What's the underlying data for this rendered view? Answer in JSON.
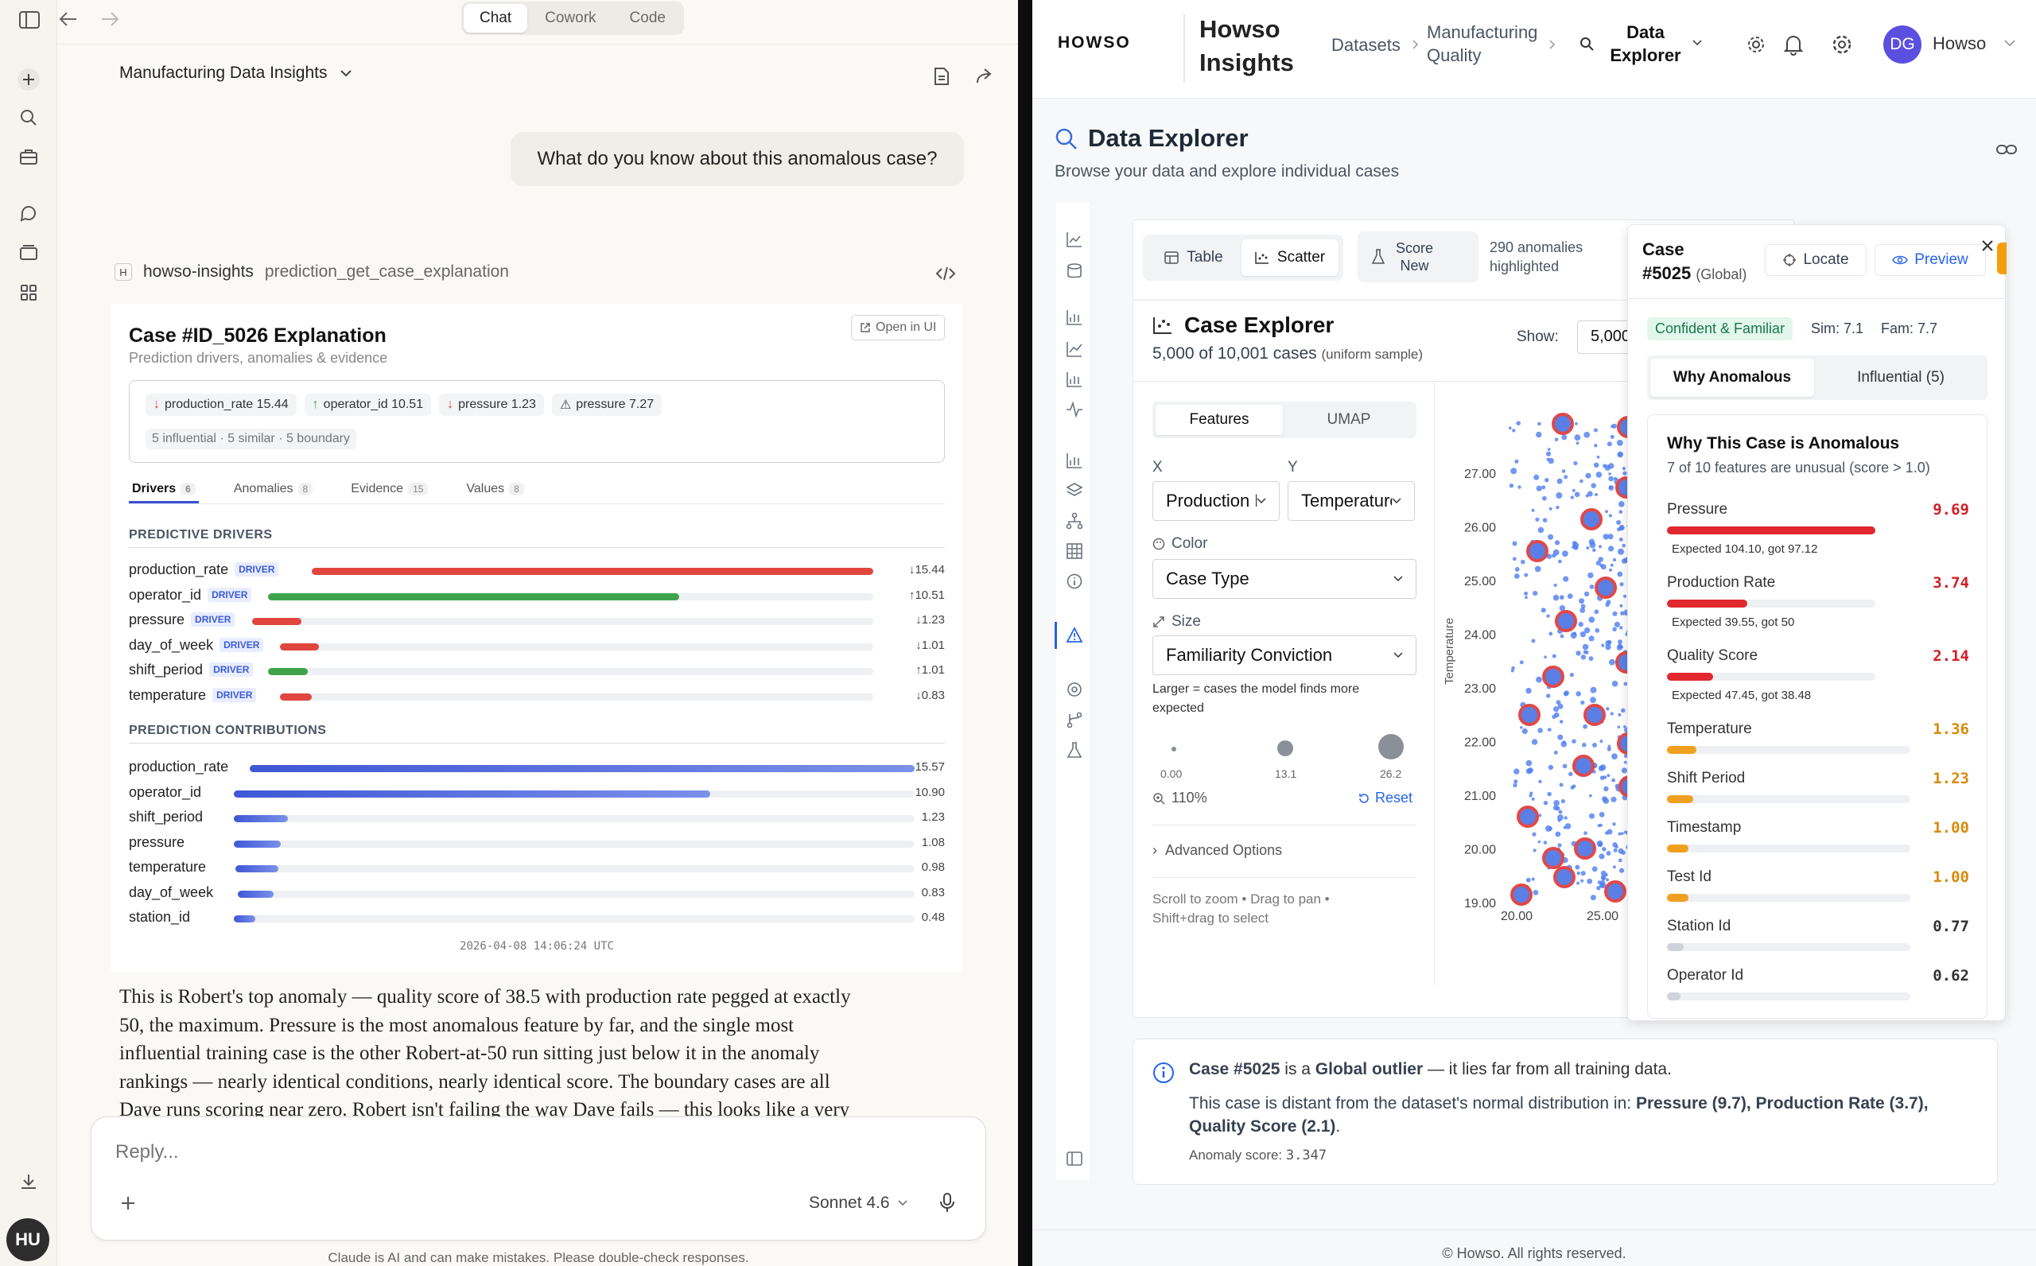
{
  "left": {
    "tabs": [
      "Chat",
      "Cowork",
      "Code"
    ],
    "active_tab": "Chat",
    "conversation_title": "Manufacturing Data Insights",
    "user_message": "What do you know about this anomalous case?",
    "tool": {
      "badge": "H",
      "server": "howso-insights",
      "name": "prediction_get_case_explanation"
    },
    "card": {
      "title": "Case #ID_5026 Explanation",
      "subtitle": "Prediction drivers, anomalies & evidence",
      "open_label": "Open in UI",
      "chips": [
        {
          "dir": "down",
          "text": "production_rate 15.44"
        },
        {
          "dir": "up",
          "text": "operator_id 10.51"
        },
        {
          "dir": "down",
          "text": "pressure 1.23"
        },
        {
          "dir": "warn",
          "text": "pressure 7.27"
        }
      ],
      "summary": "5 influential · 5 similar · 5 boundary",
      "tabs": [
        {
          "label": "Drivers",
          "count": "6"
        },
        {
          "label": "Anomalies",
          "count": "8"
        },
        {
          "label": "Evidence",
          "count": "15"
        },
        {
          "label": "Values",
          "count": "8"
        }
      ],
      "drivers_heading": "PREDICTIVE DRIVERS",
      "driver_tag": "DRIVER",
      "drivers": [
        {
          "name": "production_rate",
          "value": "↓15.44",
          "fraction": 1.0,
          "color": "#e0463e"
        },
        {
          "name": "operator_id",
          "value": "↑10.51",
          "fraction": 0.68,
          "color": "#3fa34d"
        },
        {
          "name": "pressure",
          "value": "↓1.23",
          "fraction": 0.08,
          "color": "#e0463e"
        },
        {
          "name": "day_of_week",
          "value": "↓1.01",
          "fraction": 0.066,
          "color": "#e0463e"
        },
        {
          "name": "shift_period",
          "value": "↑1.01",
          "fraction": 0.066,
          "color": "#3fa34d"
        },
        {
          "name": "temperature",
          "value": "↓0.83",
          "fraction": 0.054,
          "color": "#e0463e"
        }
      ],
      "contrib_heading": "PREDICTION CONTRIBUTIONS",
      "contributions": [
        {
          "name": "production_rate",
          "value": "15.57",
          "fraction": 1.0
        },
        {
          "name": "operator_id",
          "value": "10.90",
          "fraction": 0.7
        },
        {
          "name": "shift_period",
          "value": "1.23",
          "fraction": 0.079
        },
        {
          "name": "pressure",
          "value": "1.08",
          "fraction": 0.069
        },
        {
          "name": "temperature",
          "value": "0.98",
          "fraction": 0.063
        },
        {
          "name": "day_of_week",
          "value": "0.83",
          "fraction": 0.053
        },
        {
          "name": "station_id",
          "value": "0.48",
          "fraction": 0.031
        }
      ],
      "timestamp": "2026-04-08 14:06:24 UTC"
    },
    "response_lines": [
      "This is Robert's top anomaly — quality score of 38.5 with production rate pegged at exactly",
      "50, the maximum. Pressure is the most anomalous feature by far, and the single most",
      "influential training case is the other Robert-at-50 run sitting just below it in the anomaly",
      "rankings — nearly identical conditions, nearly identical score. The boundary cases are all",
      "Dave runs scoring near zero. Robert isn't failing the way Dave fails — this looks like a very"
    ],
    "reply_placeholder": "Reply...",
    "model": "Sonnet 4.6",
    "disclaimer": "Claude is AI and can make mistakes. Please double-check responses.",
    "avatar": "HU"
  },
  "right": {
    "logo": "HOWSO",
    "app_title_1": "Howso",
    "app_title_2": "Insights",
    "crumb_1": "Datasets",
    "crumb_2a": "Manufacturing",
    "crumb_2b": "Quality",
    "crumb_3a": "Data",
    "crumb_3b": "Explorer",
    "user_initials": "DG",
    "user_name": "Howso",
    "page_title": "Data Explorer",
    "page_subtitle": "Browse your data and explore individual cases",
    "view_table": "Table",
    "view_scatter": "Scatter",
    "score_1": "Score",
    "score_2": "New",
    "anom_1": "290 anomalies",
    "anom_2": "highlighted",
    "explorer_title": "Case Explorer",
    "explorer_count": "5,000 of 10,001 cases",
    "explorer_sample": "(uniform sample)",
    "show_label": "Show:",
    "show_value": "5,000",
    "mode_features": "Features",
    "mode_umap": "UMAP",
    "x_label": "X",
    "y_label": "Y",
    "x_value": "Production Rate",
    "y_value": "Temperature",
    "color_label": "Color",
    "color_value": "Case Type",
    "size_label": "Size",
    "size_value": "Familiarity Conviction",
    "size_note_1": "Larger = cases the model finds more",
    "size_note_2": "expected",
    "size_legend": [
      "0.00",
      "13.1",
      "26.2"
    ],
    "zoom": "110%",
    "reset": "Reset",
    "advanced": "Advanced Options",
    "hint_1": "Scroll to zoom • Drag to pan •",
    "hint_2": "Shift+drag to select",
    "y_axis_label": "Temperature",
    "y_ticks": [
      "27.00",
      "26.00",
      "25.00",
      "24.00",
      "23.00",
      "22.00",
      "21.00",
      "20.00",
      "19.00"
    ],
    "x_ticks": [
      "20.00",
      "25.00"
    ],
    "case": {
      "title_1": "Case",
      "title_2": "#5025",
      "scope": "(Global)",
      "locate": "Locate",
      "preview": "Preview",
      "badge": "Confident & Familiar",
      "sim": "Sim: 7.1",
      "fam": "Fam: 7.7",
      "tab_1": "Why Anomalous",
      "tab_2": "Influential (5)",
      "why_title": "Why This Case is Anomalous",
      "why_sub": "7 of 10 features are unusual (score > 1.0)",
      "features": [
        {
          "name": "Pressure",
          "score": "9.69",
          "fraction": 1.0,
          "color": "#e0282e",
          "red": true,
          "expected": "Expected 104.10, got 97.12"
        },
        {
          "name": "Production Rate",
          "score": "3.74",
          "fraction": 0.386,
          "color": "#e0282e",
          "red": true,
          "expected": "Expected 39.55, got 50"
        },
        {
          "name": "Quality Score",
          "score": "2.14",
          "fraction": 0.221,
          "color": "#e0282e",
          "red": true,
          "expected": "Expected 47.45, got 38.48"
        },
        {
          "name": "Temperature",
          "score": "1.36",
          "fraction": 0.14,
          "color": "#f0a020",
          "red": false,
          "expected": ""
        },
        {
          "name": "Shift Period",
          "score": "1.23",
          "fraction": 0.127,
          "color": "#f0a020",
          "red": false,
          "expected": ""
        },
        {
          "name": "Timestamp",
          "score": "1.00",
          "fraction": 0.103,
          "color": "#f0a020",
          "red": false,
          "expected": ""
        },
        {
          "name": "Test Id",
          "score": "1.00",
          "fraction": 0.103,
          "color": "#f0a020",
          "red": false,
          "expected": ""
        },
        {
          "name": "Station Id",
          "score": "0.77",
          "fraction": 0.079,
          "color": "#cfd3da",
          "red": false,
          "expected": ""
        },
        {
          "name": "Operator Id",
          "score": "0.62",
          "fraction": 0.064,
          "color": "#cfd3da",
          "red": false,
          "expected": ""
        }
      ]
    },
    "info": {
      "case_ref": "Case #5025",
      "is_a": " is a ",
      "outlier": "Global outlier",
      "rest": " — it lies far from all training data.",
      "line2": "This case is distant from the dataset's normal distribution in: ",
      "line2_bold": "Pressure (9.7), Production Rate (3.7),",
      "line3_bold": "Quality Score (2.1)",
      "line3_end": ".",
      "score_label": "Anomaly score: ",
      "score_value": "3.347"
    },
    "footer": "© Howso. All rights reserved."
  },
  "colors": {
    "accent": "#3b4fd0",
    "driver_red": "#e0463e",
    "driver_green": "#3fa34d",
    "contrib_blue": "#4a63d8",
    "anomaly_red": "#e0282e",
    "warn_orange": "#f0a020",
    "point_blue": "#4f7df0"
  }
}
